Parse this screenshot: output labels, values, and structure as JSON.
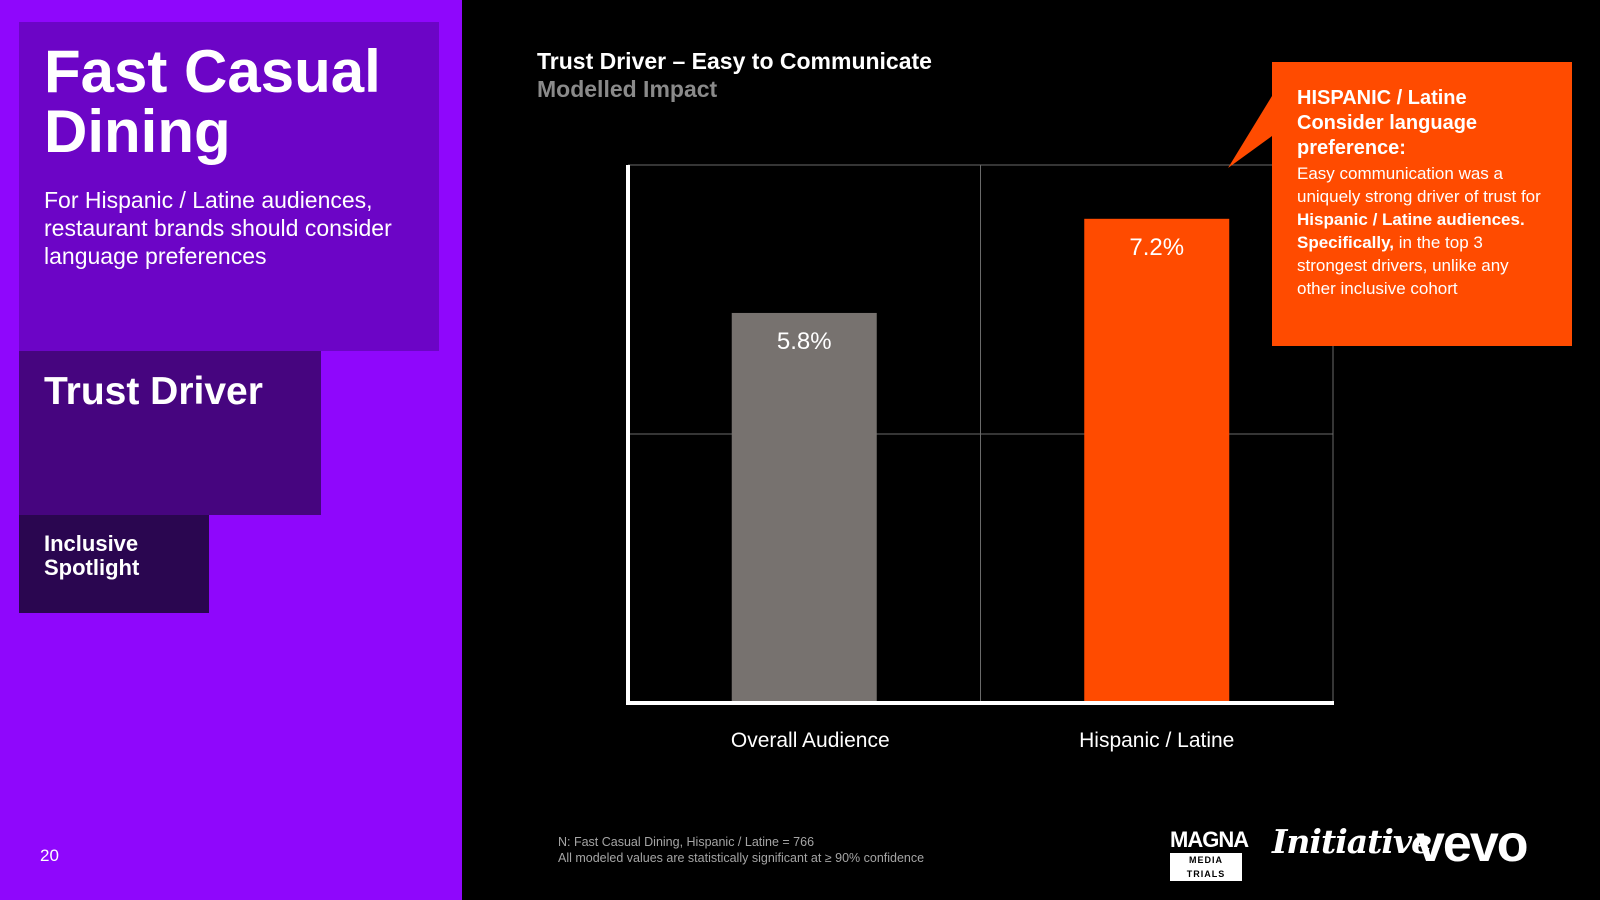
{
  "sidebar": {
    "title": "Fast Casual Dining",
    "subtitle": "For Hispanic / Latine audiences, restaurant brands should consider language preferences",
    "section_title": "Trust Driver",
    "spotlight_label": "Inclusive Spotlight",
    "page_number": "20"
  },
  "chart_data": {
    "type": "bar",
    "title": "Trust Driver – Easy to Communicate",
    "subtitle": "Modelled Impact",
    "categories": [
      "Overall Audience",
      "Hispanic / Latine"
    ],
    "values": [
      5.8,
      7.2
    ],
    "data_labels": [
      "5.8%",
      "7.2%"
    ],
    "ylim": [
      0,
      8
    ],
    "grid": true,
    "bar_colors": [
      "#77726f",
      "#ff4b00"
    ]
  },
  "callout": {
    "heading": "HISPANIC / Latine Consider language preference:",
    "body_1": "Easy communication was a uniquely strong driver of trust for ",
    "body_bold_1": "Hispanic / Latine audiences. Specifically,",
    "body_2": " in the top 3 strongest drivers, unlike any other inclusive cohort",
    "color": "#ff4b00"
  },
  "footnotes": {
    "line1": "N: Fast Casual Dining, Hispanic / Latine = 766",
    "line2": "All modeled values are statistically significant at ≥ 90% confidence"
  },
  "logos": {
    "magna": "MAGNA",
    "magna_sub": "MEDIA TRIALS",
    "initiative": "Initiative",
    "vevo": "vevo"
  }
}
